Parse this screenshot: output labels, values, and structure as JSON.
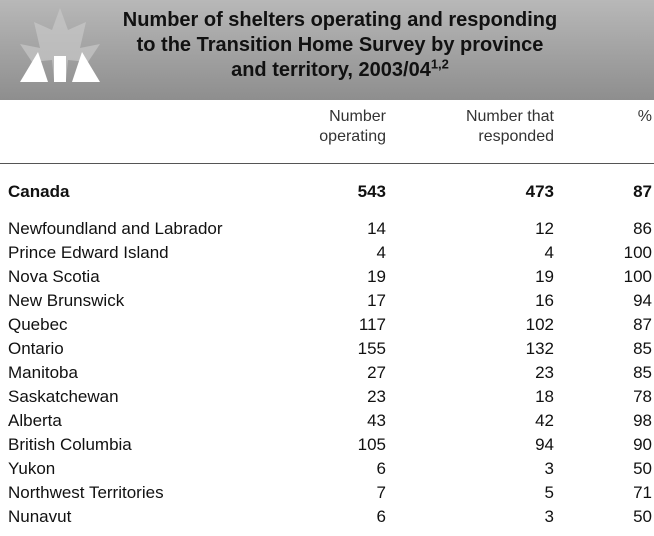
{
  "header": {
    "title": [
      "Number of shelters operating and responding",
      "to the Transition Home Survey by province",
      "and territory, 2003/04"
    ],
    "superscript": "1,2"
  },
  "table": {
    "columns": [
      "Number operating",
      "Number that responded",
      "%"
    ],
    "total": [
      "Canada",
      "543",
      "473",
      "87"
    ],
    "rows": [
      [
        "Newfoundland and Labrador",
        "14",
        "12",
        "86"
      ],
      [
        "Prince Edward Island",
        "4",
        "4",
        "100"
      ],
      [
        "Nova Scotia",
        "19",
        "19",
        "100"
      ],
      [
        "New Brunswick",
        "17",
        "16",
        "94"
      ],
      [
        "Quebec",
        "117",
        "102",
        "87"
      ],
      [
        "Ontario",
        "155",
        "132",
        "85"
      ],
      [
        "Manitoba",
        "27",
        "23",
        "85"
      ],
      [
        "Saskatchewan",
        "23",
        "18",
        "78"
      ],
      [
        "Alberta",
        "43",
        "42",
        "98"
      ],
      [
        "British Columbia",
        "105",
        "94",
        "90"
      ],
      [
        "Yukon",
        "6",
        "3",
        "50"
      ],
      [
        "Northwest Territories",
        "7",
        "5",
        "71"
      ],
      [
        "Nunavut",
        "6",
        "3",
        "50"
      ]
    ]
  }
}
